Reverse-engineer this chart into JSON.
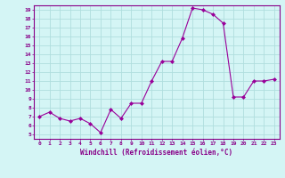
{
  "x": [
    0,
    1,
    2,
    3,
    4,
    5,
    6,
    7,
    8,
    9,
    10,
    11,
    12,
    13,
    14,
    15,
    16,
    17,
    18,
    19,
    20,
    21,
    22,
    23
  ],
  "y": [
    7.0,
    7.5,
    6.8,
    6.5,
    6.8,
    6.2,
    5.2,
    7.8,
    6.8,
    8.5,
    8.5,
    11.0,
    13.2,
    13.2,
    15.8,
    19.2,
    19.0,
    18.5,
    17.5,
    9.2,
    9.2,
    11.0,
    11.0,
    11.2
  ],
  "line_color": "#990099",
  "marker": "D",
  "marker_size": 2,
  "bg_color": "#d4f5f5",
  "grid_color": "#b0dede",
  "xlabel": "Windchill (Refroidissement éolien,°C)",
  "xlim": [
    -0.5,
    23.5
  ],
  "ylim": [
    4.5,
    19.5
  ],
  "yticks": [
    5,
    6,
    7,
    8,
    9,
    10,
    11,
    12,
    13,
    14,
    15,
    16,
    17,
    18,
    19
  ],
  "xticks": [
    0,
    1,
    2,
    3,
    4,
    5,
    6,
    7,
    8,
    9,
    10,
    11,
    12,
    13,
    14,
    15,
    16,
    17,
    18,
    19,
    20,
    21,
    22,
    23
  ],
  "tick_fontsize": 4.5,
  "xlabel_fontsize": 5.5,
  "label_color": "#880088",
  "spine_color": "#880088",
  "linewidth": 0.8
}
